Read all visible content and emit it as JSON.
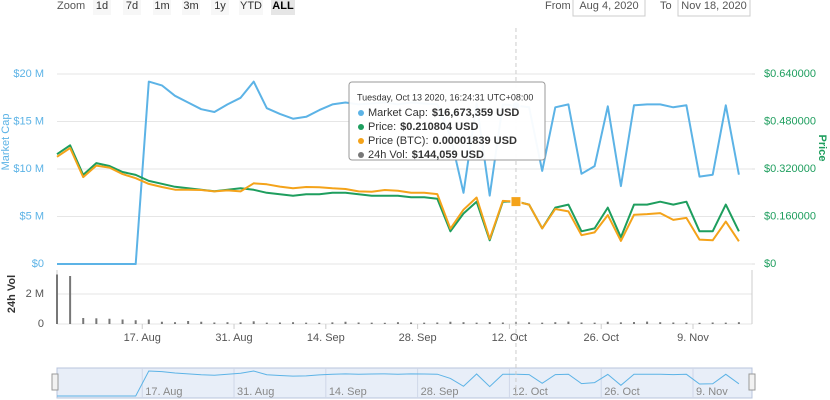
{
  "range_selector": {
    "zoom_label": "Zoom",
    "buttons": [
      "1d",
      "7d",
      "1m",
      "3m",
      "1y",
      "YTD",
      "ALL"
    ],
    "selected": "ALL",
    "from_label": "From",
    "from": "Aug 4, 2020",
    "to_label": "To",
    "to": "Nov 18, 2020"
  },
  "chart_data": {
    "type": "line",
    "y_label": "Market Cap",
    "y2_label": "Price",
    "volume_label": "24h Vol",
    "xlim": [
      "2020-08-04",
      "2020-11-18"
    ],
    "xticks": [
      {
        "value": "2020-08-17",
        "label": "17. Aug"
      },
      {
        "value": "2020-08-31",
        "label": "31. Aug"
      },
      {
        "value": "2020-09-14",
        "label": "14. Sep"
      },
      {
        "value": "2020-09-28",
        "label": "28. Sep"
      },
      {
        "value": "2020-10-12",
        "label": "12. Oct"
      },
      {
        "value": "2020-10-26",
        "label": "26. Oct"
      },
      {
        "value": "2020-11-09",
        "label": "9. Nov"
      }
    ],
    "ylim": [
      0,
      20000000
    ],
    "yticks": [
      {
        "value": 0,
        "label": "$0"
      },
      {
        "value": 5000000,
        "label": "$5 M"
      },
      {
        "value": 10000000,
        "label": "$10 M"
      },
      {
        "value": 15000000,
        "label": "$15 M"
      },
      {
        "value": 20000000,
        "label": "$20 M"
      }
    ],
    "y2lim": [
      0,
      0.64
    ],
    "y2ticks": [
      {
        "value": 0,
        "label": "$0"
      },
      {
        "value": 0.16,
        "label": "$0.160000"
      },
      {
        "value": 0.32,
        "label": "$0.320000"
      },
      {
        "value": 0.48,
        "label": "$0.480000"
      },
      {
        "value": 0.64,
        "label": "$0.640000"
      }
    ],
    "y3lim": [
      0,
      5.6e-05
    ],
    "volume_ylim": [
      0,
      3600000
    ],
    "volume_yticks": [
      0,
      {
        "value": 2000000,
        "label": "2 M"
      }
    ],
    "grid": true,
    "x": [
      "2020-08-04",
      "2020-08-06",
      "2020-08-08",
      "2020-08-10",
      "2020-08-12",
      "2020-08-14",
      "2020-08-16",
      "2020-08-18",
      "2020-08-20",
      "2020-08-22",
      "2020-08-24",
      "2020-08-26",
      "2020-08-28",
      "2020-08-30",
      "2020-09-01",
      "2020-09-03",
      "2020-09-05",
      "2020-09-07",
      "2020-09-09",
      "2020-09-11",
      "2020-09-13",
      "2020-09-15",
      "2020-09-17",
      "2020-09-19",
      "2020-09-21",
      "2020-09-23",
      "2020-09-25",
      "2020-09-27",
      "2020-09-29",
      "2020-10-01",
      "2020-10-03",
      "2020-10-05",
      "2020-10-07",
      "2020-10-09",
      "2020-10-11",
      "2020-10-13",
      "2020-10-15",
      "2020-10-17",
      "2020-10-19",
      "2020-10-21",
      "2020-10-23",
      "2020-10-25",
      "2020-10-27",
      "2020-10-29",
      "2020-10-31",
      "2020-11-02",
      "2020-11-04",
      "2020-11-06",
      "2020-11-08",
      "2020-11-10",
      "2020-11-12",
      "2020-11-14",
      "2020-11-16"
    ],
    "series": [
      {
        "name": "Market Cap",
        "color": "#5cb3e6",
        "axis": "y",
        "marker": "circle",
        "values": [
          0,
          0,
          0,
          0,
          0,
          0,
          0,
          19200000,
          18800000,
          17700000,
          17000000,
          16300000,
          16000000,
          16800000,
          17500000,
          19200000,
          16400000,
          15800000,
          15300000,
          15500000,
          16200000,
          16800000,
          17000000,
          16800000,
          16900000,
          17000000,
          16800000,
          17000000,
          16900000,
          16800000,
          13500000,
          7500000,
          16900000,
          7200000,
          16800000,
          16673359,
          16500000,
          9800000,
          16500000,
          16800000,
          9500000,
          10300000,
          16600000,
          8200000,
          16700000,
          16800000,
          16800000,
          16500000,
          16700000,
          9200000,
          9400000,
          16700000,
          9400000
        ]
      },
      {
        "name": "Price",
        "color": "#1e9e5e",
        "axis": "y2",
        "marker": "diamond",
        "values": [
          0.37,
          0.4,
          0.3,
          0.34,
          0.33,
          0.31,
          0.3,
          0.28,
          0.27,
          0.26,
          0.255,
          0.25,
          0.245,
          0.25,
          0.255,
          0.25,
          0.24,
          0.235,
          0.23,
          0.235,
          0.235,
          0.24,
          0.24,
          0.235,
          0.23,
          0.23,
          0.23,
          0.225,
          0.225,
          0.22,
          0.11,
          0.17,
          0.21,
          0.08,
          0.21,
          0.210804,
          0.2,
          0.12,
          0.19,
          0.2,
          0.11,
          0.12,
          0.19,
          0.09,
          0.2,
          0.2,
          0.21,
          0.2,
          0.21,
          0.11,
          0.11,
          0.2,
          0.11
        ]
      },
      {
        "name": "Price (BTC)",
        "color": "#f4a31a",
        "axis": "y3",
        "marker": "square",
        "values": [
          3.16e-05,
          3.42e-05,
          2.56e-05,
          2.9e-05,
          2.84e-05,
          2.65e-05,
          2.53e-05,
          2.36e-05,
          2.27e-05,
          2.19e-05,
          2.19e-05,
          2.18e-05,
          2.14e-05,
          2.17e-05,
          2.14e-05,
          2.38e-05,
          2.35e-05,
          2.28e-05,
          2.23e-05,
          2.27e-05,
          2.26e-05,
          2.23e-05,
          2.21e-05,
          2.14e-05,
          2.13e-05,
          2.18e-05,
          2.16e-05,
          2.1e-05,
          2.1e-05,
          2.06e-05,
          1.04e-05,
          1.6e-05,
          1.96e-05,
          7.4e-06,
          1.86e-05,
          1.839e-05,
          1.75e-05,
          1.05e-05,
          1.62e-05,
          1.55e-05,
          8.5e-06,
          9.3e-06,
          1.44e-05,
          6.8e-06,
          1.45e-05,
          1.47e-05,
          1.5e-05,
          1.3e-05,
          1.36e-05,
          7.2e-06,
          7e-06,
          1.25e-05,
          6.7e-06
        ]
      },
      {
        "name": "24h Vol",
        "color": "#777777",
        "axis": "volume",
        "marker": "none",
        "values": [
          3300000,
          3200000,
          400000,
          380000,
          350000,
          300000,
          250000,
          300000,
          150000,
          120000,
          200000,
          150000,
          100000,
          120000,
          110000,
          180000,
          90000,
          100000,
          120000,
          90000,
          80000,
          110000,
          150000,
          100000,
          90000,
          80000,
          120000,
          100000,
          90000,
          100000,
          150000,
          120000,
          90000,
          130000,
          100000,
          144059,
          110000,
          90000,
          120000,
          160000,
          100000,
          90000,
          150000,
          110000,
          130000,
          160000,
          120000,
          100000,
          90000,
          80000,
          100000,
          90000,
          120000
        ]
      }
    ],
    "tooltip": {
      "x": "2020-10-13",
      "title": "Tuesday, Oct 13 2020, 16:24:31 UTC+08:00",
      "separator": ":",
      "labels": [
        "$16,673,359 USD",
        "$0.210804 USD",
        "0.00001839 USD",
        "$144,059 USD"
      ]
    }
  }
}
